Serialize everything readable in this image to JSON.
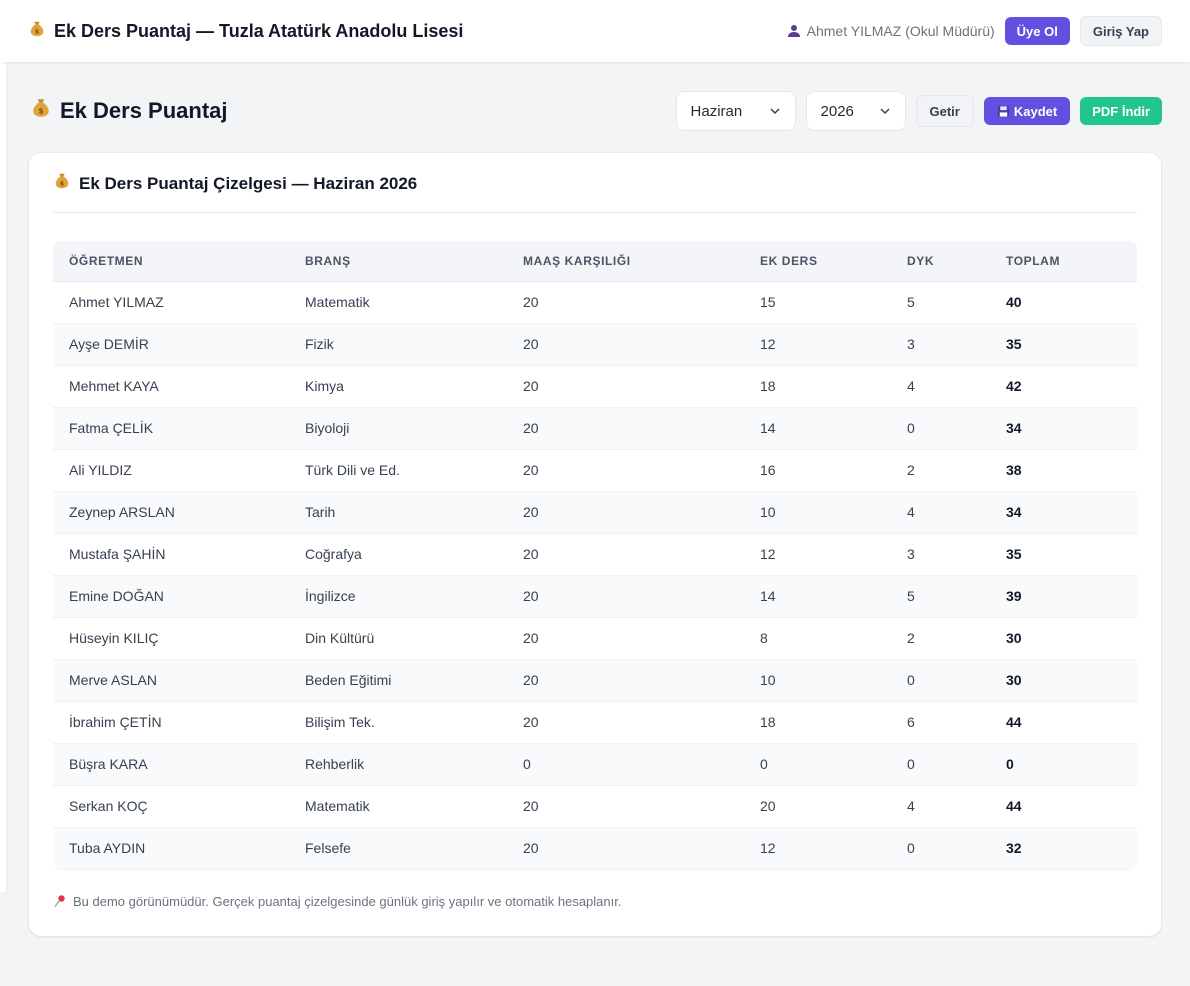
{
  "topbar": {
    "app_title": "Ek Ders Puantaj — Tuzla Atatürk Anadolu Lisesi",
    "user_label": "Ahmet YILMAZ (Okul Müdürü)",
    "signup_label": "Üye Ol",
    "login_label": "Giriş Yap"
  },
  "page": {
    "title": "Ek Ders Puantaj",
    "month_value": "Haziran",
    "year_value": "2026",
    "fetch_label": "Getir",
    "save_label": "Kaydet",
    "pdf_label": "PDF İndir"
  },
  "card": {
    "title": "Ek Ders Puantaj Çizelgesi — Haziran 2026",
    "footnote": "Bu demo görünümüdür. Gerçek puantaj çizelgesinde günlük giriş yapılır ve otomatik hesaplanır."
  },
  "table": {
    "headers": [
      "ÖĞRETMEN",
      "BRANŞ",
      "MAAŞ KARŞILIĞI",
      "EK DERS",
      "DYK",
      "TOPLAM"
    ],
    "rows": [
      [
        "Ahmet YILMAZ",
        "Matematik",
        "20",
        "15",
        "5",
        "40"
      ],
      [
        "Ayşe DEMİR",
        "Fizik",
        "20",
        "12",
        "3",
        "35"
      ],
      [
        "Mehmet KAYA",
        "Kimya",
        "20",
        "18",
        "4",
        "42"
      ],
      [
        "Fatma ÇELİK",
        "Biyoloji",
        "20",
        "14",
        "0",
        "34"
      ],
      [
        "Ali YILDIZ",
        "Türk Dili ve Ed.",
        "20",
        "16",
        "2",
        "38"
      ],
      [
        "Zeynep ARSLAN",
        "Tarih",
        "20",
        "10",
        "4",
        "34"
      ],
      [
        "Mustafa ŞAHİN",
        "Coğrafya",
        "20",
        "12",
        "3",
        "35"
      ],
      [
        "Emine DOĞAN",
        "İngilizce",
        "20",
        "14",
        "5",
        "39"
      ],
      [
        "Hüseyin KILIÇ",
        "Din Kültürü",
        "20",
        "8",
        "2",
        "30"
      ],
      [
        "Merve ASLAN",
        "Beden Eğitimi",
        "20",
        "10",
        "0",
        "30"
      ],
      [
        "İbrahim ÇETİN",
        "Bilişim Tek.",
        "20",
        "18",
        "6",
        "44"
      ],
      [
        "Büşra KARA",
        "Rehberlik",
        "0",
        "0",
        "0",
        "0"
      ],
      [
        "Serkan KOÇ",
        "Matematik",
        "20",
        "20",
        "4",
        "44"
      ],
      [
        "Tuba AYDIN",
        "Felsefe",
        "20",
        "12",
        "0",
        "32"
      ]
    ]
  },
  "icons": {
    "title": "money-bag-icon",
    "user": "user-icon",
    "save": "floppy-disk-icon",
    "footnote": "pushpin-icon",
    "dropdown": "chevron-down-icon"
  },
  "colors": {
    "primary": "#6051e0",
    "green": "#22c58b",
    "background": "#f3f4f6"
  }
}
